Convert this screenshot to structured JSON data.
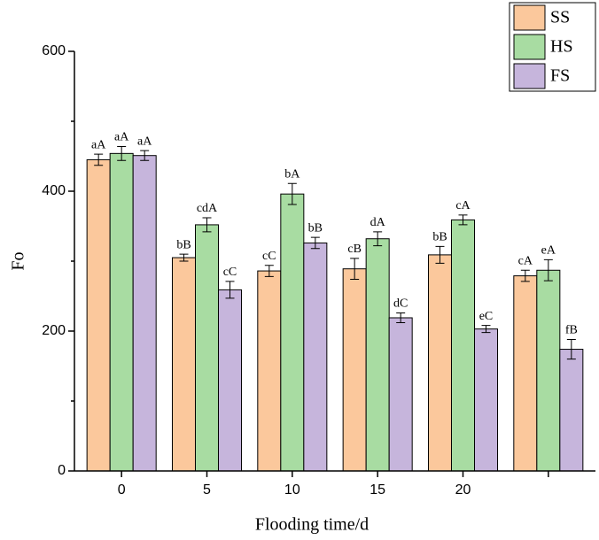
{
  "chart_data": {
    "type": "bar",
    "x_label": "Flooding time/d",
    "y_label": "Fo",
    "categories": [
      "0",
      "5",
      "10",
      "15",
      "20",
      null
    ],
    "series": [
      {
        "name": "SS",
        "color": "#fbc89c",
        "values": [
          445,
          305,
          286,
          289,
          309,
          279
        ],
        "errors": [
          8,
          5,
          8,
          15,
          12,
          8
        ],
        "annotations": [
          "aA",
          "bB",
          "cC",
          "cB",
          "bB",
          "cA"
        ]
      },
      {
        "name": "HS",
        "color": "#a8dca2",
        "values": [
          454,
          352,
          396,
          332,
          359,
          287
        ],
        "errors": [
          10,
          10,
          15,
          10,
          7,
          15
        ],
        "annotations": [
          "aA",
          "cdA",
          "bA",
          "dA",
          "cA",
          "eA"
        ]
      },
      {
        "name": "FS",
        "color": "#c6b5dc",
        "values": [
          451,
          259,
          326,
          219,
          203,
          174
        ],
        "errors": [
          7,
          12,
          8,
          7,
          5,
          14
        ],
        "annotations": [
          "aA",
          "cC",
          "bB",
          "dC",
          "eC",
          "fB"
        ]
      }
    ],
    "ylim": [
      0,
      600
    ],
    "yticks": [
      0,
      200,
      400,
      600
    ],
    "yminorticks": [
      100,
      300,
      500
    ],
    "grid": false,
    "legend": "top-right"
  }
}
